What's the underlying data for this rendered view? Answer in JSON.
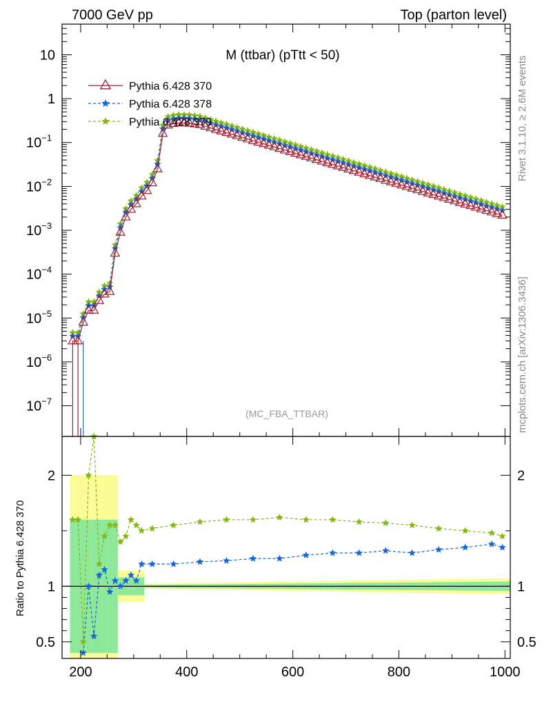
{
  "header": {
    "left": "7000 GeV pp",
    "right": "Top (parton level)"
  },
  "side_labels": {
    "rivet": "Rivet 3.1.10, ≥ 2.6M events",
    "mcplots": "mcplots.cern.ch [arXiv:1306.3436]"
  },
  "chart_data": [
    {
      "type": "line",
      "panel": "main",
      "title": "M (ttbar) (pTtt < 50)",
      "watermark": "(MC_FBA_TTBAR)",
      "xlabel": "",
      "ylabel": "",
      "yscale": "log",
      "xlim": [
        165,
        1010
      ],
      "ylim": [
        2e-08,
        50
      ],
      "x_ticks": [
        200,
        400,
        600,
        800,
        1000
      ],
      "y_ticks": [
        {
          "value": 1e-07,
          "label": "10",
          "exp": "−7"
        },
        {
          "value": 1e-06,
          "label": "10",
          "exp": "−6"
        },
        {
          "value": 1e-05,
          "label": "10",
          "exp": "−5"
        },
        {
          "value": 0.0001,
          "label": "10",
          "exp": "−4"
        },
        {
          "value": 0.001,
          "label": "10",
          "exp": "−3"
        },
        {
          "value": 0.01,
          "label": "10",
          "exp": "−2"
        },
        {
          "value": 0.1,
          "label": "10",
          "exp": "−1"
        },
        {
          "value": 1,
          "label": "1",
          "exp": ""
        },
        {
          "value": 10,
          "label": "10",
          "exp": ""
        }
      ],
      "legend_position": "top-left",
      "series": [
        {
          "name": "Pythia 6.428 370",
          "color": "#a11c2d",
          "marker": "triangle-open",
          "line": "solid",
          "x": [
            185,
            195,
            205,
            215,
            225,
            235,
            245,
            255,
            265,
            275,
            285,
            295,
            305,
            315,
            325,
            335,
            345,
            355,
            365,
            375,
            385,
            395,
            405,
            415,
            425
          ],
          "values": [
            3e-06,
            3e-06,
            8e-06,
            1.5e-05,
            1.5e-05,
            2.5e-05,
            3.5e-05,
            4e-05,
            0.0003,
            0.0009,
            0.002,
            0.003,
            0.004,
            0.006,
            0.008,
            0.012,
            0.025,
            0.16,
            0.25,
            0.27,
            0.28,
            0.28,
            0.275,
            0.265,
            0.255
          ],
          "tail": {
            "x_start": 425,
            "x_end": 995,
            "step": 10,
            "y_start": 0.255,
            "y_end": 0.0022
          }
        },
        {
          "name": "Pythia 6.428 378",
          "color": "#1566d6",
          "marker": "star",
          "line": "dashed",
          "ratio_to_370": 1.27
        },
        {
          "name": "Pythia 6.428 379",
          "color": "#86b516",
          "marker": "star",
          "line": "dashed",
          "ratio_to_370": 1.55
        }
      ]
    },
    {
      "type": "line",
      "panel": "ratio",
      "xlabel": "",
      "ylabel": "Ratio to Pythia 6.428 370",
      "ylim": [
        0.35,
        2.35
      ],
      "x_ticks": [
        200,
        400,
        600,
        800,
        1000
      ],
      "y_ticks": [
        0.5,
        1,
        2
      ],
      "reference_line": 1,
      "band_inner_color": "#8ee89a",
      "band_outer_color": "#fcfc96",
      "series": [
        {
          "name": "Pythia 6.428 378",
          "color": "#1566d6",
          "x": [
            205,
            215,
            225,
            235,
            245,
            255,
            265,
            275,
            285,
            295,
            305,
            315,
            335,
            375,
            425,
            475,
            525,
            575,
            625,
            675,
            725,
            775,
            825,
            875,
            925,
            975,
            995
          ],
          "values": [
            0.4,
            1.0,
            0.55,
            1.1,
            1.15,
            0.95,
            1.05,
            1.0,
            1.05,
            1.1,
            1.05,
            1.2,
            1.2,
            1.2,
            1.22,
            1.23,
            1.25,
            1.25,
            1.28,
            1.3,
            1.3,
            1.32,
            1.3,
            1.33,
            1.35,
            1.38,
            1.35
          ]
        },
        {
          "name": "Pythia 6.428 379",
          "color": "#86b516",
          "x": [
            185,
            195,
            205,
            215,
            225,
            235,
            245,
            255,
            265,
            275,
            285,
            295,
            305,
            315,
            335,
            375,
            425,
            475,
            525,
            575,
            625,
            675,
            725,
            775,
            825,
            875,
            925,
            975,
            995
          ],
          "values": [
            1.6,
            1.6,
            0.5,
            2.0,
            2.35,
            1.2,
            1.45,
            1.55,
            1.55,
            1.4,
            1.45,
            1.6,
            1.55,
            1.5,
            1.52,
            1.55,
            1.58,
            1.6,
            1.6,
            1.62,
            1.6,
            1.6,
            1.58,
            1.57,
            1.55,
            1.52,
            1.5,
            1.48,
            1.45
          ]
        }
      ]
    }
  ]
}
